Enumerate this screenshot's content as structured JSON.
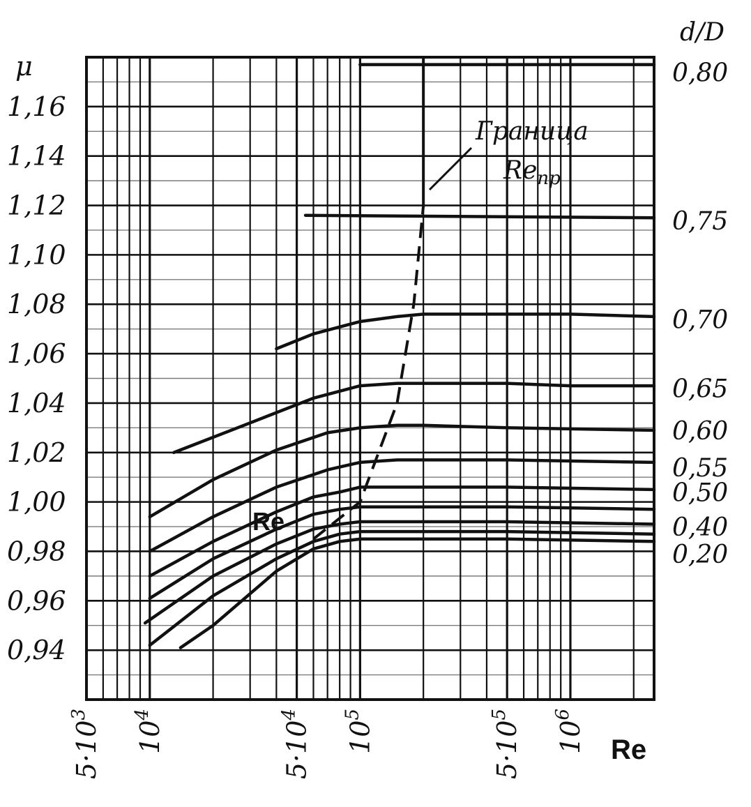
{
  "chart_data": {
    "type": "line",
    "x_scale": "log",
    "xlim": [
      5000,
      2500000
    ],
    "ylim": [
      0.92,
      1.18
    ],
    "grid": true,
    "y_left_label": "μ",
    "y_right_label": "d/D",
    "x_label": "Re",
    "inner_re_label": "Re",
    "annotation": {
      "title": "Граница",
      "sub_main": "Re",
      "sub_index": "пр"
    },
    "y_left_ticks": [
      {
        "label": "1,16",
        "value": 1.16
      },
      {
        "label": "1,14",
        "value": 1.14
      },
      {
        "label": "1,12",
        "value": 1.12
      },
      {
        "label": "1,10",
        "value": 1.1
      },
      {
        "label": "1,08",
        "value": 1.08
      },
      {
        "label": "1,06",
        "value": 1.06
      },
      {
        "label": "1,04",
        "value": 1.04
      },
      {
        "label": "1,02",
        "value": 1.02
      },
      {
        "label": "1,00",
        "value": 1.0
      },
      {
        "label": "0,98",
        "value": 0.98
      },
      {
        "label": "0,96",
        "value": 0.96
      },
      {
        "label": "0,94",
        "value": 0.94
      }
    ],
    "x_ticks": [
      {
        "mant": "5·10",
        "exp": "3",
        "value": 5000
      },
      {
        "mant": "10",
        "exp": "4",
        "value": 10000
      },
      {
        "mant": "5·10",
        "exp": "4",
        "value": 50000
      },
      {
        "mant": "10",
        "exp": "5",
        "value": 100000
      },
      {
        "mant": "5·10",
        "exp": "5",
        "value": 500000
      },
      {
        "mant": "10",
        "exp": "6",
        "value": 1000000
      }
    ],
    "right_labels": [
      {
        "label": "0,80",
        "value": 1.174
      },
      {
        "label": "0,75",
        "value": 1.114
      },
      {
        "label": "0,70",
        "value": 1.074
      },
      {
        "label": "0,65",
        "value": 1.046
      },
      {
        "label": "0,60",
        "value": 1.029
      },
      {
        "label": "0,55",
        "value": 1.014
      },
      {
        "label": "0,50",
        "value": 1.004
      },
      {
        "label": "0,40",
        "value": 0.99
      },
      {
        "label": "0,20",
        "value": 0.979
      }
    ],
    "series": [
      {
        "x": [
          100000,
          2500000
        ],
        "y": [
          1.177,
          1.177
        ]
      },
      {
        "x": [
          55000,
          2500000
        ],
        "y": [
          1.116,
          1.115
        ]
      },
      {
        "x": [
          40000,
          60000,
          100000,
          150000,
          200000,
          500000,
          1000000,
          2500000
        ],
        "y": [
          1.062,
          1.068,
          1.073,
          1.075,
          1.076,
          1.076,
          1.076,
          1.075
        ]
      },
      {
        "x": [
          13000,
          30000,
          60000,
          100000,
          150000,
          200000,
          500000,
          1000000,
          2500000
        ],
        "y": [
          1.02,
          1.032,
          1.042,
          1.047,
          1.048,
          1.048,
          1.048,
          1.047,
          1.047
        ]
      },
      {
        "x": [
          10000,
          20000,
          40000,
          70000,
          100000,
          150000,
          200000,
          500000,
          2500000
        ],
        "y": [
          0.994,
          1.009,
          1.021,
          1.028,
          1.03,
          1.031,
          1.031,
          1.03,
          1.029
        ]
      },
      {
        "x": [
          10000,
          20000,
          40000,
          70000,
          100000,
          150000,
          500000,
          2500000
        ],
        "y": [
          0.98,
          0.994,
          1.006,
          1.013,
          1.016,
          1.017,
          1.017,
          1.016
        ]
      },
      {
        "x": [
          10000,
          20000,
          40000,
          60000,
          80000,
          100000,
          150000,
          500000,
          2500000
        ],
        "y": [
          0.97,
          0.984,
          0.996,
          1.002,
          1.004,
          1.006,
          1.006,
          1.006,
          1.005
        ]
      },
      {
        "x": [
          10000,
          20000,
          40000,
          60000,
          80000,
          100000,
          500000,
          2500000
        ],
        "y": [
          0.961,
          0.977,
          0.989,
          0.995,
          0.997,
          0.998,
          0.998,
          0.997
        ]
      },
      {
        "x": [
          9500,
          20000,
          40000,
          60000,
          80000,
          100000,
          500000,
          2500000
        ],
        "y": [
          0.951,
          0.97,
          0.983,
          0.989,
          0.991,
          0.992,
          0.992,
          0.991
        ]
      },
      {
        "x": [
          10000,
          20000,
          40000,
          60000,
          80000,
          100000,
          500000,
          2500000
        ],
        "y": [
          0.942,
          0.962,
          0.977,
          0.984,
          0.987,
          0.988,
          0.988,
          0.987
        ]
      },
      {
        "x": [
          14000,
          20000,
          40000,
          60000,
          80000,
          100000,
          500000,
          2500000
        ],
        "y": [
          0.941,
          0.95,
          0.972,
          0.981,
          0.984,
          0.985,
          0.985,
          0.984
        ]
      }
    ],
    "boundary": {
      "x": [
        60000,
        100000,
        150000,
        180000,
        200000
      ],
      "y": [
        0.985,
        1.0,
        1.04,
        1.08,
        1.12
      ]
    }
  }
}
